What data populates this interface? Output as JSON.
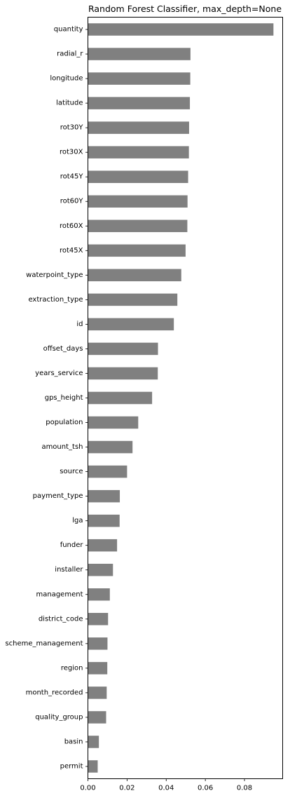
{
  "chart_data": {
    "type": "bar",
    "orientation": "horizontal",
    "title": "Random Forest Classifier, max_depth=None",
    "xlabel": "",
    "ylabel": "",
    "xlim": [
      0,
      0.0995
    ],
    "xticks": [
      0.0,
      0.02,
      0.04,
      0.06,
      0.08
    ],
    "xtick_labels": [
      "0.00",
      "0.02",
      "0.04",
      "0.06",
      "0.08"
    ],
    "grid": false,
    "bar_color": "#808080",
    "categories": [
      "quantity",
      "radial_r",
      "longitude",
      "latitude",
      "rot30Y",
      "rot30X",
      "rot45Y",
      "rot60Y",
      "rot60X",
      "rot45X",
      "waterpoint_type",
      "extraction_type",
      "id",
      "offset_days",
      "years_service",
      "gps_height",
      "population",
      "amount_tsh",
      "source",
      "payment_type",
      "lga",
      "funder",
      "installer",
      "management",
      "district_code",
      "scheme_management",
      "region",
      "month_recorded",
      "quality_group",
      "basin",
      "permit"
    ],
    "values": [
      0.0948,
      0.0524,
      0.0523,
      0.0521,
      0.0517,
      0.0516,
      0.0512,
      0.0509,
      0.0508,
      0.0499,
      0.0477,
      0.0457,
      0.0439,
      0.0358,
      0.0357,
      0.0328,
      0.0257,
      0.0228,
      0.02,
      0.0163,
      0.0162,
      0.0149,
      0.0128,
      0.0112,
      0.0103,
      0.01,
      0.0099,
      0.0096,
      0.0093,
      0.0056,
      0.005
    ]
  }
}
